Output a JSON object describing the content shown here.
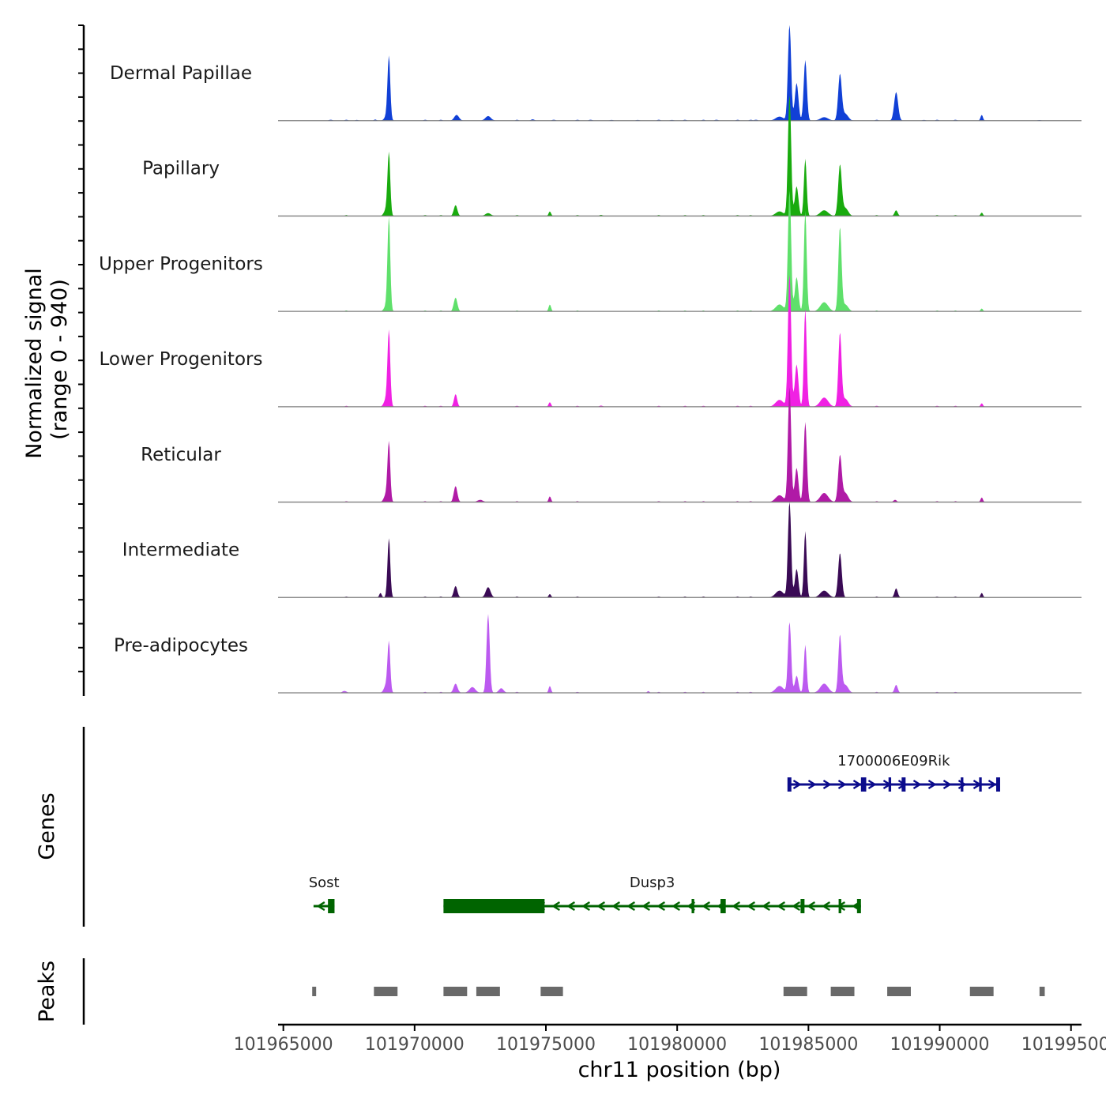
{
  "chart_data": {
    "type": "area",
    "title": "",
    "chromosome": "chr11",
    "xlabel": "chr11 position (bp)",
    "xlim": [
      101964800,
      101995400
    ],
    "x_ticks": [
      101965000,
      101970000,
      101975000,
      101980000,
      101985000,
      101990000,
      101995000
    ],
    "x_tick_labels": [
      "101965000",
      "101970000",
      "101975000",
      "101980000",
      "101985000",
      "101990000",
      "101995000"
    ],
    "signal_panel": {
      "ylabel_line1": "Normalized signal",
      "ylabel_line2": "(range 0 - 940)",
      "ylim": [
        0,
        940
      ],
      "series": [
        {
          "name": "Dermal Papillae",
          "color": "#1140d6",
          "peaks": [
            [
              101966800,
              8,
              80
            ],
            [
              101967800,
              6,
              70
            ],
            [
              101968500,
              10,
              60
            ],
            [
              101968900,
              30,
              90
            ],
            [
              101969020,
              565,
              70
            ],
            [
              101971600,
              50,
              120
            ],
            [
              101972800,
              40,
              140
            ],
            [
              101974500,
              12,
              80
            ],
            [
              101975300,
              8,
              80
            ],
            [
              101976700,
              8,
              80
            ],
            [
              101977500,
              6,
              80
            ],
            [
              101978500,
              6,
              80
            ],
            [
              101979800,
              6,
              80
            ],
            [
              101981500,
              8,
              80
            ],
            [
              101983000,
              8,
              80
            ],
            [
              101983900,
              35,
              200
            ],
            [
              101984280,
              840,
              80
            ],
            [
              101984550,
              330,
              90
            ],
            [
              101984880,
              530,
              80
            ],
            [
              101985600,
              30,
              200
            ],
            [
              101986200,
              400,
              90
            ],
            [
              101986400,
              60,
              150
            ],
            [
              101988340,
              250,
              100
            ],
            [
              101989400,
              6,
              80
            ],
            [
              101991600,
              50,
              60
            ],
            [
              101993800,
              5,
              80
            ]
          ]
        },
        {
          "name": "Papillary",
          "color": "#19ab0e",
          "peaks": [
            [
              101968900,
              50,
              100
            ],
            [
              101969020,
              550,
              70
            ],
            [
              101971560,
              95,
              90
            ],
            [
              101972800,
              25,
              140
            ],
            [
              101975150,
              40,
              60
            ],
            [
              101977100,
              10,
              80
            ],
            [
              101983900,
              40,
              200
            ],
            [
              101984280,
              1060,
              80
            ],
            [
              101984550,
              260,
              90
            ],
            [
              101984880,
              500,
              70
            ],
            [
              101985600,
              50,
              200
            ],
            [
              101986200,
              440,
              90
            ],
            [
              101986400,
              70,
              150
            ],
            [
              101988340,
              50,
              80
            ],
            [
              101991600,
              30,
              60
            ]
          ]
        },
        {
          "name": "Upper Progenitors",
          "color": "#5fe06b",
          "peaks": [
            [
              101968900,
              40,
              100
            ],
            [
              101969020,
              820,
              70
            ],
            [
              101971560,
              120,
              90
            ],
            [
              101975150,
              60,
              60
            ],
            [
              101983900,
              60,
              200
            ],
            [
              101984280,
              1060,
              80
            ],
            [
              101984550,
              300,
              90
            ],
            [
              101984880,
              880,
              70
            ],
            [
              101985600,
              80,
              200
            ],
            [
              101986200,
              730,
              80
            ],
            [
              101986400,
              60,
              150
            ],
            [
              101991600,
              25,
              60
            ]
          ]
        },
        {
          "name": "Lower Progenitors",
          "color": "#f021e3",
          "peaks": [
            [
              101968900,
              60,
              100
            ],
            [
              101969020,
              660,
              70
            ],
            [
              101971560,
              110,
              80
            ],
            [
              101975150,
              40,
              60
            ],
            [
              101977100,
              10,
              80
            ],
            [
              101983900,
              60,
              200
            ],
            [
              101984280,
              1160,
              80
            ],
            [
              101984550,
              370,
              90
            ],
            [
              101984880,
              860,
              70
            ],
            [
              101985600,
              80,
              200
            ],
            [
              101986200,
              640,
              80
            ],
            [
              101986400,
              70,
              150
            ],
            [
              101991600,
              30,
              60
            ]
          ]
        },
        {
          "name": "Reticular",
          "color": "#b01aa6",
          "peaks": [
            [
              101968900,
              60,
              100
            ],
            [
              101969020,
              520,
              70
            ],
            [
              101971560,
              140,
              90
            ],
            [
              101972500,
              20,
              140
            ],
            [
              101975150,
              50,
              60
            ],
            [
              101983900,
              60,
              200
            ],
            [
              101984280,
              1010,
              80
            ],
            [
              101984550,
              300,
              90
            ],
            [
              101984880,
              700,
              80
            ],
            [
              101985600,
              80,
              200
            ],
            [
              101986200,
              400,
              90
            ],
            [
              101986400,
              80,
              150
            ],
            [
              101988300,
              20,
              80
            ],
            [
              101991600,
              40,
              60
            ]
          ]
        },
        {
          "name": "Intermediate",
          "color": "#3a0a55",
          "peaks": [
            [
              101968700,
              40,
              60
            ],
            [
              101969020,
              520,
              70
            ],
            [
              101971560,
              100,
              90
            ],
            [
              101972800,
              90,
              120
            ],
            [
              101975150,
              30,
              60
            ],
            [
              101983900,
              60,
              200
            ],
            [
              101984280,
              840,
              80
            ],
            [
              101984550,
              250,
              90
            ],
            [
              101984880,
              580,
              70
            ],
            [
              101985600,
              60,
              200
            ],
            [
              101986200,
              390,
              90
            ],
            [
              101988340,
              80,
              80
            ],
            [
              101991600,
              40,
              60
            ]
          ]
        },
        {
          "name": "Pre-adipocytes",
          "color": "#bc5af0",
          "peaks": [
            [
              101967300,
              15,
              80
            ],
            [
              101968900,
              60,
              100
            ],
            [
              101969020,
              440,
              70
            ],
            [
              101971560,
              80,
              100
            ],
            [
              101972200,
              50,
              150
            ],
            [
              101972800,
              690,
              80
            ],
            [
              101973300,
              40,
              120
            ],
            [
              101975150,
              60,
              60
            ],
            [
              101978900,
              15,
              60
            ],
            [
              101983900,
              60,
              200
            ],
            [
              101984280,
              620,
              80
            ],
            [
              101984550,
              150,
              90
            ],
            [
              101984880,
              420,
              70
            ],
            [
              101985600,
              80,
              200
            ],
            [
              101986200,
              500,
              80
            ],
            [
              101986400,
              70,
              150
            ],
            [
              101988340,
              70,
              80
            ]
          ]
        }
      ]
    },
    "genes_panel": {
      "ylabel": "Genes",
      "genes": [
        {
          "name": "1700006E09Rik",
          "start": 101984250,
          "end": 101992250,
          "strand": "+",
          "row": 0,
          "color": "#0c0c8c",
          "exons": [
            [
              101984200,
              101984350
            ],
            [
              101987000,
              101987200
            ],
            [
              101988050,
              101988150
            ],
            [
              101988550,
              101988700
            ],
            [
              101990800,
              101990900
            ],
            [
              101991500,
              101991600
            ],
            [
              101992150,
              101992300
            ]
          ]
        },
        {
          "name": "Sost",
          "start": 101966150,
          "end": 101966950,
          "strand": "-",
          "row": 1,
          "color": "#006400",
          "exons": [
            [
              101966700,
              101966950
            ]
          ]
        },
        {
          "name": "Dusp3",
          "start": 101971100,
          "end": 101987000,
          "strand": "-",
          "row": 1,
          "color": "#006400",
          "exons": [
            [
              101971100,
              101974950
            ],
            [
              101980550,
              101980650
            ],
            [
              101981650,
              101981850
            ],
            [
              101984700,
              101984850
            ],
            [
              101986150,
              101986250
            ],
            [
              101986850,
              101987000
            ]
          ]
        }
      ]
    },
    "peaks_panel": {
      "ylabel": "Peaks",
      "color": "#696969",
      "peaks": [
        [
          101966100,
          101966250
        ],
        [
          101968450,
          101969350
        ],
        [
          101971100,
          101972000
        ],
        [
          101972350,
          101973250
        ],
        [
          101974800,
          101975650
        ],
        [
          101984050,
          101984950
        ],
        [
          101985850,
          101986750
        ],
        [
          101988000,
          101988900
        ],
        [
          101991150,
          101992050
        ],
        [
          101993800,
          101994000
        ]
      ]
    }
  }
}
